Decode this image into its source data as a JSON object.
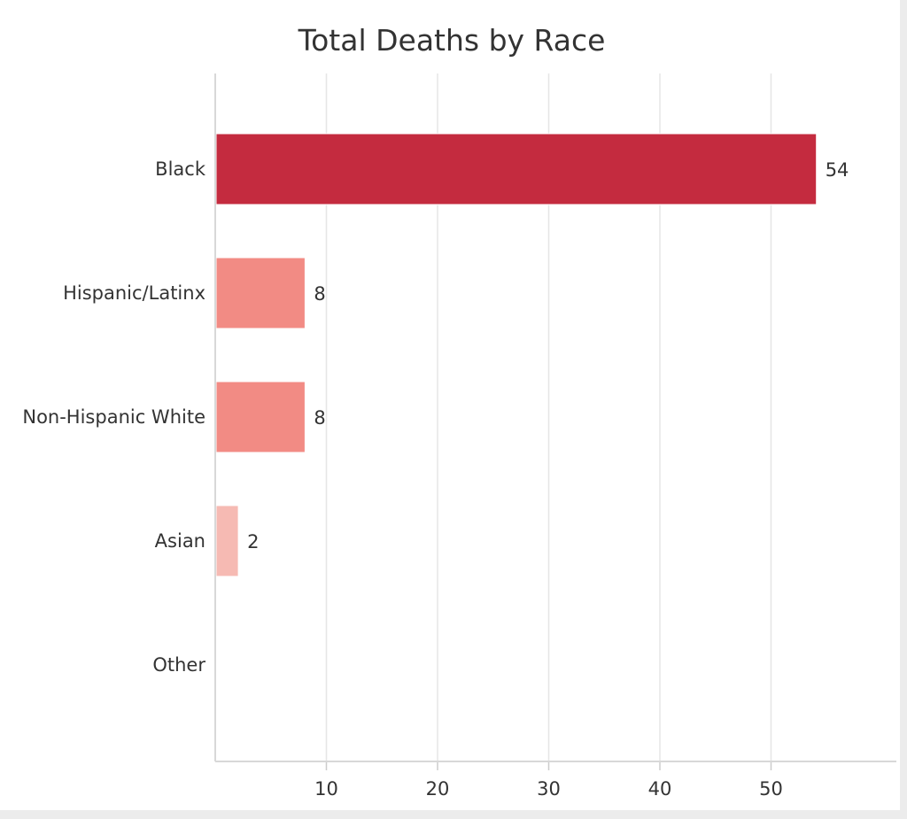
{
  "chart_data": {
    "type": "bar",
    "orientation": "horizontal",
    "title": "Total Deaths by Race",
    "xlabel": "",
    "ylabel": "",
    "categories": [
      "Black",
      "Hispanic/Latinx",
      "Non-Hispanic White",
      "Asian",
      "Other"
    ],
    "values": [
      54,
      8,
      8,
      2,
      0
    ],
    "data_labels": [
      "54",
      "8",
      "8",
      "2",
      ""
    ],
    "bar_colors": [
      "#c42b3f",
      "#f28b84",
      "#f28b84",
      "#f6bab3",
      "#fde6e3"
    ],
    "xlim": [
      0,
      59
    ],
    "x_ticks": [
      10,
      20,
      30,
      40,
      50
    ],
    "grid": "vertical",
    "legend": "none"
  }
}
